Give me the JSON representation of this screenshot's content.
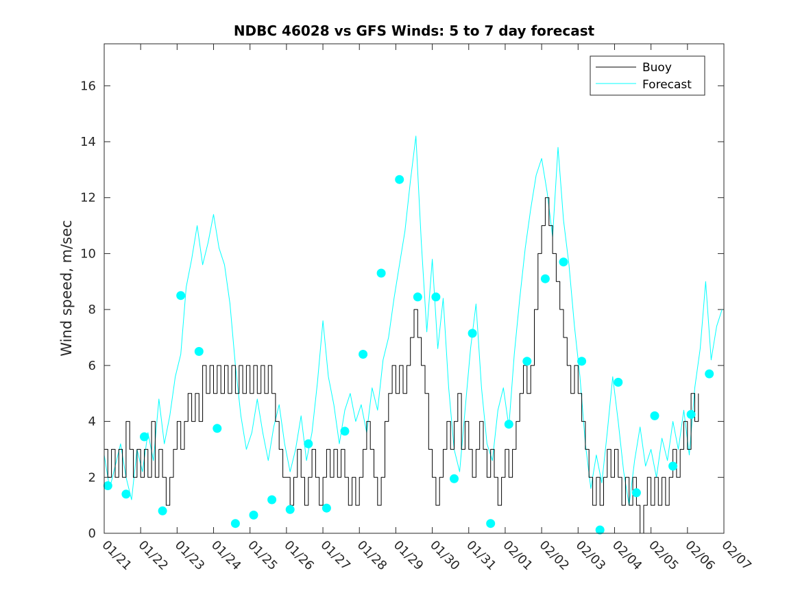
{
  "chart_data": {
    "type": "line",
    "title": "NDBC 46028 vs GFS Winds: 5 to 7 day forecast",
    "xlabel": "",
    "ylabel": "Wind speed, m/sec",
    "xlim": [
      0,
      17
    ],
    "ylim": [
      0,
      17.5
    ],
    "x_tick_labels": [
      "01/21",
      "01/22",
      "01/23",
      "01/24",
      "01/25",
      "01/26",
      "01/27",
      "01/28",
      "01/29",
      "01/30",
      "01/31",
      "02/01",
      "02/02",
      "02/03",
      "02/04",
      "02/05",
      "02/06",
      "02/07"
    ],
    "y_ticks": [
      0,
      2,
      4,
      6,
      8,
      10,
      12,
      14,
      16
    ],
    "y_tick_labels": [
      "0",
      "2",
      "4",
      "6",
      "8",
      "10",
      "12",
      "14",
      "16"
    ],
    "legend": {
      "position": "top-right",
      "entries": [
        "Buoy",
        "Forecast"
      ]
    },
    "colors": {
      "buoy": "#000000",
      "forecast": "#00ffff"
    },
    "series": [
      {
        "name": "Buoy",
        "points": [
          [
            0.0,
            3
          ],
          [
            0.1,
            2
          ],
          [
            0.2,
            3
          ],
          [
            0.3,
            2
          ],
          [
            0.4,
            3
          ],
          [
            0.5,
            2
          ],
          [
            0.6,
            4
          ],
          [
            0.7,
            3
          ],
          [
            0.8,
            2
          ],
          [
            0.9,
            3
          ],
          [
            1.0,
            2
          ],
          [
            1.1,
            3
          ],
          [
            1.2,
            2
          ],
          [
            1.3,
            4
          ],
          [
            1.4,
            2
          ],
          [
            1.5,
            3
          ],
          [
            1.6,
            2
          ],
          [
            1.7,
            1
          ],
          [
            1.8,
            2
          ],
          [
            1.9,
            3
          ],
          [
            2.0,
            4
          ],
          [
            2.1,
            3
          ],
          [
            2.2,
            4
          ],
          [
            2.3,
            5
          ],
          [
            2.4,
            4
          ],
          [
            2.5,
            5
          ],
          [
            2.6,
            4
          ],
          [
            2.7,
            6
          ],
          [
            2.8,
            5
          ],
          [
            2.9,
            6
          ],
          [
            3.0,
            5
          ],
          [
            3.1,
            6
          ],
          [
            3.2,
            5
          ],
          [
            3.3,
            6
          ],
          [
            3.4,
            5
          ],
          [
            3.5,
            6
          ],
          [
            3.6,
            5
          ],
          [
            3.7,
            6
          ],
          [
            3.8,
            5
          ],
          [
            3.9,
            6
          ],
          [
            4.0,
            5
          ],
          [
            4.1,
            6
          ],
          [
            4.2,
            5
          ],
          [
            4.3,
            6
          ],
          [
            4.4,
            5
          ],
          [
            4.5,
            6
          ],
          [
            4.6,
            5
          ],
          [
            4.7,
            4
          ],
          [
            4.8,
            3
          ],
          [
            4.9,
            2
          ],
          [
            5.0,
            2
          ],
          [
            5.1,
            1
          ],
          [
            5.2,
            2
          ],
          [
            5.3,
            3
          ],
          [
            5.4,
            2
          ],
          [
            5.5,
            1
          ],
          [
            5.6,
            2
          ],
          [
            5.7,
            3
          ],
          [
            5.8,
            2
          ],
          [
            5.9,
            1
          ],
          [
            6.0,
            2
          ],
          [
            6.1,
            3
          ],
          [
            6.2,
            2
          ],
          [
            6.3,
            3
          ],
          [
            6.4,
            2
          ],
          [
            6.5,
            3
          ],
          [
            6.6,
            2
          ],
          [
            6.7,
            1
          ],
          [
            6.8,
            2
          ],
          [
            6.9,
            1
          ],
          [
            7.0,
            2
          ],
          [
            7.1,
            3
          ],
          [
            7.2,
            4
          ],
          [
            7.3,
            3
          ],
          [
            7.4,
            2
          ],
          [
            7.5,
            1
          ],
          [
            7.6,
            2
          ],
          [
            7.7,
            4
          ],
          [
            7.8,
            5
          ],
          [
            7.9,
            6
          ],
          [
            8.0,
            5
          ],
          [
            8.1,
            6
          ],
          [
            8.2,
            5
          ],
          [
            8.3,
            6
          ],
          [
            8.4,
            7
          ],
          [
            8.5,
            8
          ],
          [
            8.6,
            7
          ],
          [
            8.7,
            6
          ],
          [
            8.8,
            5
          ],
          [
            8.9,
            3
          ],
          [
            9.0,
            2
          ],
          [
            9.1,
            1
          ],
          [
            9.2,
            2
          ],
          [
            9.3,
            3
          ],
          [
            9.4,
            4
          ],
          [
            9.5,
            3
          ],
          [
            9.6,
            4
          ],
          [
            9.7,
            5
          ],
          [
            9.8,
            3
          ],
          [
            9.9,
            4
          ],
          [
            10.0,
            3
          ],
          [
            10.1,
            2
          ],
          [
            10.2,
            3
          ],
          [
            10.3,
            4
          ],
          [
            10.4,
            3
          ],
          [
            10.5,
            2
          ],
          [
            10.6,
            3
          ],
          [
            10.7,
            2
          ],
          [
            10.8,
            1
          ],
          [
            10.9,
            2
          ],
          [
            11.0,
            3
          ],
          [
            11.1,
            2
          ],
          [
            11.2,
            3
          ],
          [
            11.3,
            4
          ],
          [
            11.4,
            5
          ],
          [
            11.5,
            6
          ],
          [
            11.6,
            5
          ],
          [
            11.7,
            6
          ],
          [
            11.8,
            8
          ],
          [
            11.9,
            10
          ],
          [
            12.0,
            11
          ],
          [
            12.1,
            12
          ],
          [
            12.2,
            11
          ],
          [
            12.3,
            10
          ],
          [
            12.4,
            9
          ],
          [
            12.5,
            8
          ],
          [
            12.6,
            7
          ],
          [
            12.7,
            6
          ],
          [
            12.8,
            5
          ],
          [
            12.9,
            6
          ],
          [
            13.0,
            5
          ],
          [
            13.1,
            4
          ],
          [
            13.2,
            3
          ],
          [
            13.3,
            2
          ],
          [
            13.4,
            1
          ],
          [
            13.5,
            2
          ],
          [
            13.6,
            1
          ],
          [
            13.7,
            2
          ],
          [
            13.8,
            3
          ],
          [
            13.9,
            2
          ],
          [
            14.0,
            3
          ],
          [
            14.1,
            2
          ],
          [
            14.2,
            1
          ],
          [
            14.3,
            2
          ],
          [
            14.4,
            1
          ],
          [
            14.5,
            2
          ],
          [
            14.6,
            1
          ],
          [
            14.7,
            0
          ],
          [
            14.8,
            1
          ],
          [
            14.9,
            2
          ],
          [
            15.0,
            1
          ],
          [
            15.1,
            2
          ],
          [
            15.2,
            1
          ],
          [
            15.3,
            2
          ],
          [
            15.4,
            1
          ],
          [
            15.5,
            2
          ],
          [
            15.6,
            3
          ],
          [
            15.7,
            2
          ],
          [
            15.8,
            3
          ],
          [
            15.9,
            4
          ],
          [
            16.0,
            3
          ],
          [
            16.1,
            5
          ],
          [
            16.2,
            4
          ],
          [
            16.3,
            5
          ]
        ]
      },
      {
        "name": "Forecast",
        "points": [
          [
            0.0,
            2.8
          ],
          [
            0.15,
            1.6
          ],
          [
            0.3,
            2.4
          ],
          [
            0.45,
            3.2
          ],
          [
            0.6,
            2.0
          ],
          [
            0.75,
            1.2
          ],
          [
            0.9,
            3.0
          ],
          [
            1.05,
            2.2
          ],
          [
            1.2,
            3.6
          ],
          [
            1.35,
            2.6
          ],
          [
            1.5,
            4.8
          ],
          [
            1.65,
            3.2
          ],
          [
            1.8,
            4.2
          ],
          [
            1.95,
            5.6
          ],
          [
            2.1,
            6.4
          ],
          [
            2.25,
            8.8
          ],
          [
            2.4,
            9.8
          ],
          [
            2.55,
            11.0
          ],
          [
            2.7,
            9.6
          ],
          [
            2.85,
            10.4
          ],
          [
            3.0,
            11.4
          ],
          [
            3.15,
            10.2
          ],
          [
            3.3,
            9.6
          ],
          [
            3.45,
            8.2
          ],
          [
            3.6,
            6.0
          ],
          [
            3.75,
            4.2
          ],
          [
            3.9,
            3.0
          ],
          [
            4.05,
            3.6
          ],
          [
            4.2,
            4.8
          ],
          [
            4.35,
            3.6
          ],
          [
            4.5,
            2.6
          ],
          [
            4.65,
            3.8
          ],
          [
            4.8,
            4.6
          ],
          [
            4.95,
            3.2
          ],
          [
            5.1,
            2.2
          ],
          [
            5.25,
            3.0
          ],
          [
            5.4,
            4.2
          ],
          [
            5.55,
            2.6
          ],
          [
            5.7,
            3.6
          ],
          [
            5.85,
            5.4
          ],
          [
            6.0,
            7.6
          ],
          [
            6.15,
            5.6
          ],
          [
            6.3,
            4.6
          ],
          [
            6.45,
            3.2
          ],
          [
            6.6,
            4.4
          ],
          [
            6.75,
            5.0
          ],
          [
            6.9,
            4.0
          ],
          [
            7.05,
            4.6
          ],
          [
            7.2,
            3.6
          ],
          [
            7.35,
            5.2
          ],
          [
            7.5,
            4.4
          ],
          [
            7.65,
            6.2
          ],
          [
            7.8,
            7.0
          ],
          [
            7.95,
            8.4
          ],
          [
            8.1,
            9.6
          ],
          [
            8.25,
            10.8
          ],
          [
            8.4,
            12.6
          ],
          [
            8.55,
            14.2
          ],
          [
            8.7,
            10.4
          ],
          [
            8.85,
            7.2
          ],
          [
            9.0,
            9.8
          ],
          [
            9.15,
            6.6
          ],
          [
            9.3,
            8.4
          ],
          [
            9.45,
            5.2
          ],
          [
            9.6,
            3.0
          ],
          [
            9.75,
            2.2
          ],
          [
            9.9,
            4.4
          ],
          [
            10.05,
            6.6
          ],
          [
            10.2,
            8.2
          ],
          [
            10.35,
            5.2
          ],
          [
            10.5,
            3.2
          ],
          [
            10.65,
            2.6
          ],
          [
            10.8,
            4.4
          ],
          [
            10.95,
            5.2
          ],
          [
            11.1,
            3.8
          ],
          [
            11.25,
            6.4
          ],
          [
            11.4,
            8.4
          ],
          [
            11.55,
            10.2
          ],
          [
            11.7,
            11.6
          ],
          [
            11.85,
            12.8
          ],
          [
            12.0,
            13.4
          ],
          [
            12.15,
            12.2
          ],
          [
            12.3,
            10.6
          ],
          [
            12.45,
            13.8
          ],
          [
            12.6,
            11.2
          ],
          [
            12.75,
            9.6
          ],
          [
            12.9,
            7.4
          ],
          [
            13.05,
            5.6
          ],
          [
            13.2,
            3.2
          ],
          [
            13.35,
            1.6
          ],
          [
            13.5,
            2.8
          ],
          [
            13.65,
            1.8
          ],
          [
            13.8,
            3.6
          ],
          [
            13.95,
            5.6
          ],
          [
            14.1,
            4.0
          ],
          [
            14.25,
            2.2
          ],
          [
            14.4,
            1.0
          ],
          [
            14.55,
            2.6
          ],
          [
            14.7,
            3.8
          ],
          [
            14.85,
            2.4
          ],
          [
            15.0,
            3.0
          ],
          [
            15.15,
            2.0
          ],
          [
            15.3,
            3.4
          ],
          [
            15.45,
            2.6
          ],
          [
            15.6,
            4.0
          ],
          [
            15.75,
            3.0
          ],
          [
            15.9,
            4.4
          ],
          [
            16.05,
            2.8
          ],
          [
            16.2,
            5.2
          ],
          [
            16.35,
            6.6
          ],
          [
            16.5,
            9.0
          ],
          [
            16.65,
            6.2
          ],
          [
            16.8,
            7.4
          ],
          [
            16.95,
            8.0
          ]
        ]
      }
    ],
    "forecast_markers": [
      [
        0.1,
        1.7
      ],
      [
        0.6,
        1.4
      ],
      [
        1.1,
        3.45
      ],
      [
        1.6,
        0.8
      ],
      [
        2.1,
        8.5
      ],
      [
        2.6,
        6.5
      ],
      [
        3.1,
        3.75
      ],
      [
        3.6,
        0.35
      ],
      [
        4.1,
        0.65
      ],
      [
        4.6,
        1.2
      ],
      [
        5.1,
        0.85
      ],
      [
        5.6,
        3.2
      ],
      [
        6.1,
        0.9
      ],
      [
        6.6,
        3.65
      ],
      [
        7.1,
        6.4
      ],
      [
        7.6,
        9.3
      ],
      [
        8.1,
        12.65
      ],
      [
        8.6,
        8.45
      ],
      [
        9.1,
        8.45
      ],
      [
        9.6,
        1.95
      ],
      [
        10.1,
        7.15
      ],
      [
        10.6,
        0.35
      ],
      [
        11.1,
        3.9
      ],
      [
        11.6,
        6.15
      ],
      [
        12.1,
        9.1
      ],
      [
        12.6,
        9.7
      ],
      [
        13.1,
        6.15
      ],
      [
        13.6,
        0.12
      ],
      [
        14.1,
        5.4
      ],
      [
        14.6,
        1.45
      ],
      [
        15.1,
        4.2
      ],
      [
        15.6,
        2.4
      ],
      [
        16.1,
        4.25
      ],
      [
        16.6,
        5.7
      ]
    ]
  }
}
